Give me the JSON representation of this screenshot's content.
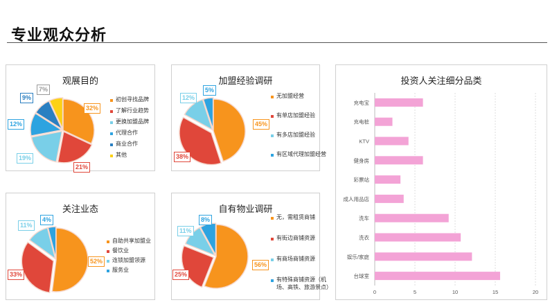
{
  "page_title": "专业观众分析",
  "chart_data": [
    {
      "type": "pie",
      "title": "观展目的",
      "slices": [
        {
          "label": "初创寻找品牌",
          "value": 32,
          "color": "#f7941d",
          "pct": "32%"
        },
        {
          "label": "了解行业趋势",
          "value": 21,
          "color": "#e0473a",
          "pct": "21%"
        },
        {
          "label": "更换加盟品牌",
          "value": 19,
          "color": "#79cfe8",
          "pct": "19%"
        },
        {
          "label": "代理合作",
          "value": 12,
          "color": "#2ea3e0",
          "pct": "12%"
        },
        {
          "label": "商业合作",
          "value": 9,
          "color": "#2a7fc1",
          "pct": "9%"
        },
        {
          "label": "其他",
          "value": 7,
          "color": "#fcd116",
          "pct": "7%"
        }
      ]
    },
    {
      "type": "pie",
      "title": "加盟经验调研",
      "slices": [
        {
          "label": "无加盟经营",
          "value": 45,
          "color": "#f7941d",
          "pct": "45%"
        },
        {
          "label": "有单店加盟经验",
          "value": 38,
          "color": "#e0473a",
          "pct": "38%"
        },
        {
          "label": "有多店加盟经验",
          "value": 12,
          "color": "#79cfe8",
          "pct": "12%"
        },
        {
          "label": "有区域代理加盟经营",
          "value": 5,
          "color": "#2ea3e0",
          "pct": "5%"
        }
      ]
    },
    {
      "type": "pie",
      "title": "关注业态",
      "slices": [
        {
          "label": "自助共享加盟业",
          "value": 52,
          "color": "#f7941d",
          "pct": "52%"
        },
        {
          "label": "餐饮业",
          "value": 33,
          "color": "#e0473a",
          "pct": "33%"
        },
        {
          "label": "连锁加盟领源",
          "value": 11,
          "color": "#79cfe8",
          "pct": "11%"
        },
        {
          "label": "服务业",
          "value": 4,
          "color": "#2ea3e0",
          "pct": "4%"
        }
      ]
    },
    {
      "type": "pie",
      "title": "自有物业调研",
      "slices": [
        {
          "label": "无，需租赁商铺",
          "value": 56,
          "color": "#f7941d",
          "pct": "56%"
        },
        {
          "label": "有街边商铺资源",
          "value": 25,
          "color": "#e0473a",
          "pct": "25%"
        },
        {
          "label": "有商场商铺资源",
          "value": 11,
          "color": "#79cfe8",
          "pct": "11%"
        },
        {
          "label": "有特殊商铺资源（机场、高铁、旅游景点）",
          "value": 8,
          "color": "#2ea3e0",
          "pct": "8%"
        }
      ]
    },
    {
      "type": "bar",
      "orientation": "horizontal",
      "title": "投资人关注细分品类",
      "categories": [
        "充电宝",
        "充电桩",
        "KTV",
        "健身房",
        "彩票站",
        "成人用品店",
        "洗车",
        "洗衣",
        "娱乐/家庭",
        "台球室"
      ],
      "values": [
        6,
        2.2,
        4.2,
        6,
        3.2,
        3.6,
        9.2,
        10.7,
        12.1,
        15.6
      ],
      "xlim": [
        0,
        20
      ],
      "xticks": [
        "0",
        "5",
        "10",
        "15",
        "20"
      ],
      "bar_color": "#f3a3d6",
      "grid": true
    }
  ]
}
